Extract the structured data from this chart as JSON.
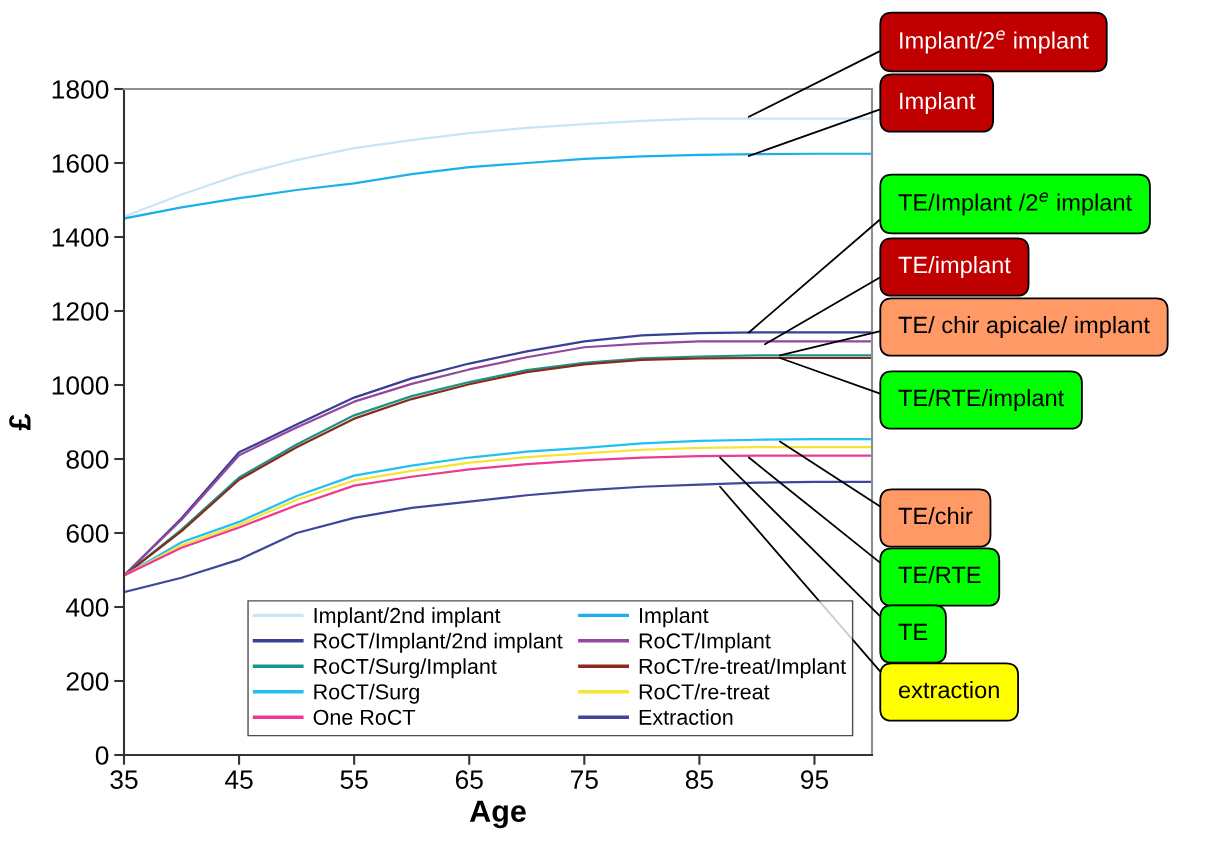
{
  "chart_data": {
    "type": "line",
    "xlabel": "Age",
    "ylabel": "£",
    "x": [
      35,
      40,
      45,
      50,
      55,
      60,
      65,
      70,
      75,
      80,
      85,
      90,
      95,
      100
    ],
    "xlim": [
      35,
      100
    ],
    "xticks": [
      35,
      45,
      55,
      65,
      75,
      85,
      95
    ],
    "ylim": [
      0,
      1800
    ],
    "yticks": [
      0,
      200,
      400,
      600,
      800,
      1000,
      1200,
      1400,
      1600,
      1800
    ],
    "grid": false,
    "legend": "bottom right",
    "marker": "none",
    "line_style": "solid",
    "series": [
      {
        "name": "Implant/2nd implant",
        "color": "#c6e6f7",
        "values": [
          1455,
          1515,
          1568,
          1608,
          1640,
          1662,
          1681,
          1695,
          1705,
          1714,
          1720,
          1720,
          1720,
          1720
        ]
      },
      {
        "name": "Implant",
        "color": "#1ab0ea",
        "values": [
          1450,
          1480,
          1505,
          1527,
          1545,
          1570,
          1589,
          1600,
          1611,
          1618,
          1622,
          1624,
          1625,
          1625
        ]
      },
      {
        "name": "RoCT/Implant/2nd implant",
        "color": "#3a3f96",
        "values": [
          485,
          640,
          818,
          893,
          966,
          1018,
          1058,
          1091,
          1118,
          1134,
          1140,
          1142,
          1142,
          1142
        ]
      },
      {
        "name": "RoCT/Implant",
        "color": "#93479e",
        "values": [
          485,
          636,
          810,
          885,
          955,
          1003,
          1042,
          1075,
          1102,
          1112,
          1118,
          1118,
          1118,
          1118
        ]
      },
      {
        "name": "RoCT/Surg/Implant",
        "color": "#1a9488",
        "values": [
          485,
          609,
          750,
          839,
          918,
          970,
          1008,
          1040,
          1060,
          1072,
          1077,
          1080,
          1080,
          1080
        ]
      },
      {
        "name": "RoCT/re-treat/Implant",
        "color": "#8b2a1c",
        "values": [
          485,
          605,
          744,
          832,
          909,
          962,
          1002,
          1035,
          1056,
          1068,
          1072,
          1073,
          1073,
          1073
        ]
      },
      {
        "name": "RoCT/Surg",
        "color": "#21c0f0",
        "values": [
          485,
          575,
          630,
          700,
          755,
          782,
          804,
          820,
          830,
          842,
          849,
          852,
          854,
          854
        ]
      },
      {
        "name": "RoCT/re-treat",
        "color": "#f5e532",
        "values": [
          485,
          567,
          622,
          690,
          742,
          768,
          790,
          805,
          815,
          825,
          830,
          832,
          832,
          832
        ]
      },
      {
        "name": "One RoCT",
        "color": "#ec3a93",
        "values": [
          485,
          560,
          615,
          675,
          728,
          752,
          772,
          786,
          796,
          804,
          808,
          809,
          809,
          809
        ]
      },
      {
        "name": "Extraction",
        "color": "#40479b",
        "values": [
          440,
          479,
          528,
          600,
          641,
          668,
          685,
          702,
          715,
          725,
          731,
          736,
          738,
          738
        ]
      }
    ],
    "annotations": [
      {
        "text": "Implant/2$^{e}$ implant",
        "x": 89.3,
        "y": 1725
      },
      {
        "text": "Implant",
        "x": 89.3,
        "y": 1619
      },
      {
        "text": "TE/Implant /2$^{e}$ implant",
        "x": 89.3,
        "y": 1142
      },
      {
        "text": "TE/implant",
        "x": 90.7,
        "y": 1110
      },
      {
        "text": "TE/ chir apicale/ implant",
        "x": 92,
        "y": 1080
      },
      {
        "text": "TE/RTE/implant",
        "x": 92,
        "y": 1073
      },
      {
        "text": "TE/chir",
        "x": 92,
        "y": 847
      },
      {
        "text": "TE/RTE",
        "x": 89.3,
        "y": 804
      },
      {
        "text": "TE",
        "x": 86.8,
        "y": 804
      },
      {
        "text": "extraction",
        "x": 86.8,
        "y": 725
      }
    ]
  }
}
